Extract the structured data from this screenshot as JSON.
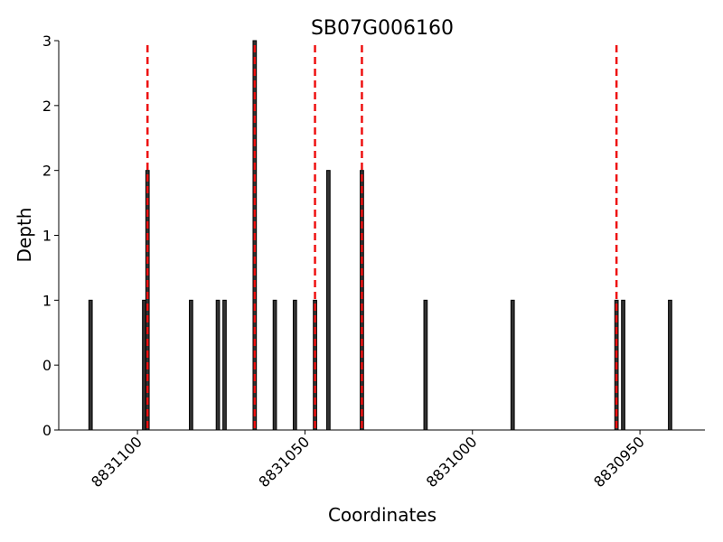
{
  "chart_data": {
    "type": "bar",
    "title": "SB07G006160",
    "xlabel": "Coordinates",
    "ylabel": "Depth",
    "x": [
      8831114,
      8831098,
      8831097,
      8831084,
      8831076,
      8831074,
      8831065,
      8831059,
      8831053,
      8831047,
      8831043,
      8831033,
      8831014,
      8830988,
      8830957,
      8830955,
      8830941
    ],
    "values": [
      1,
      1,
      2,
      1,
      1,
      1,
      3,
      1,
      1,
      1,
      2,
      2,
      1,
      1,
      1,
      1,
      1
    ],
    "color": "#333333",
    "edgecolor": "#000000",
    "vlines": [
      8831097,
      8831065,
      8831047,
      8831033,
      8830957
    ],
    "vline_color": "#ee1111",
    "xlim": [
      8831123.5,
      8830930.6
    ],
    "xticks": [
      8831100,
      8831050,
      8831000,
      8830950
    ],
    "ylim": [
      0,
      3
    ],
    "yticks": [
      0,
      {
        "value": 0.5,
        "label": "0"
      },
      1,
      {
        "value": 1.5,
        "label": "1"
      },
      2,
      {
        "value": 2.5,
        "label": "2"
      },
      3
    ]
  }
}
